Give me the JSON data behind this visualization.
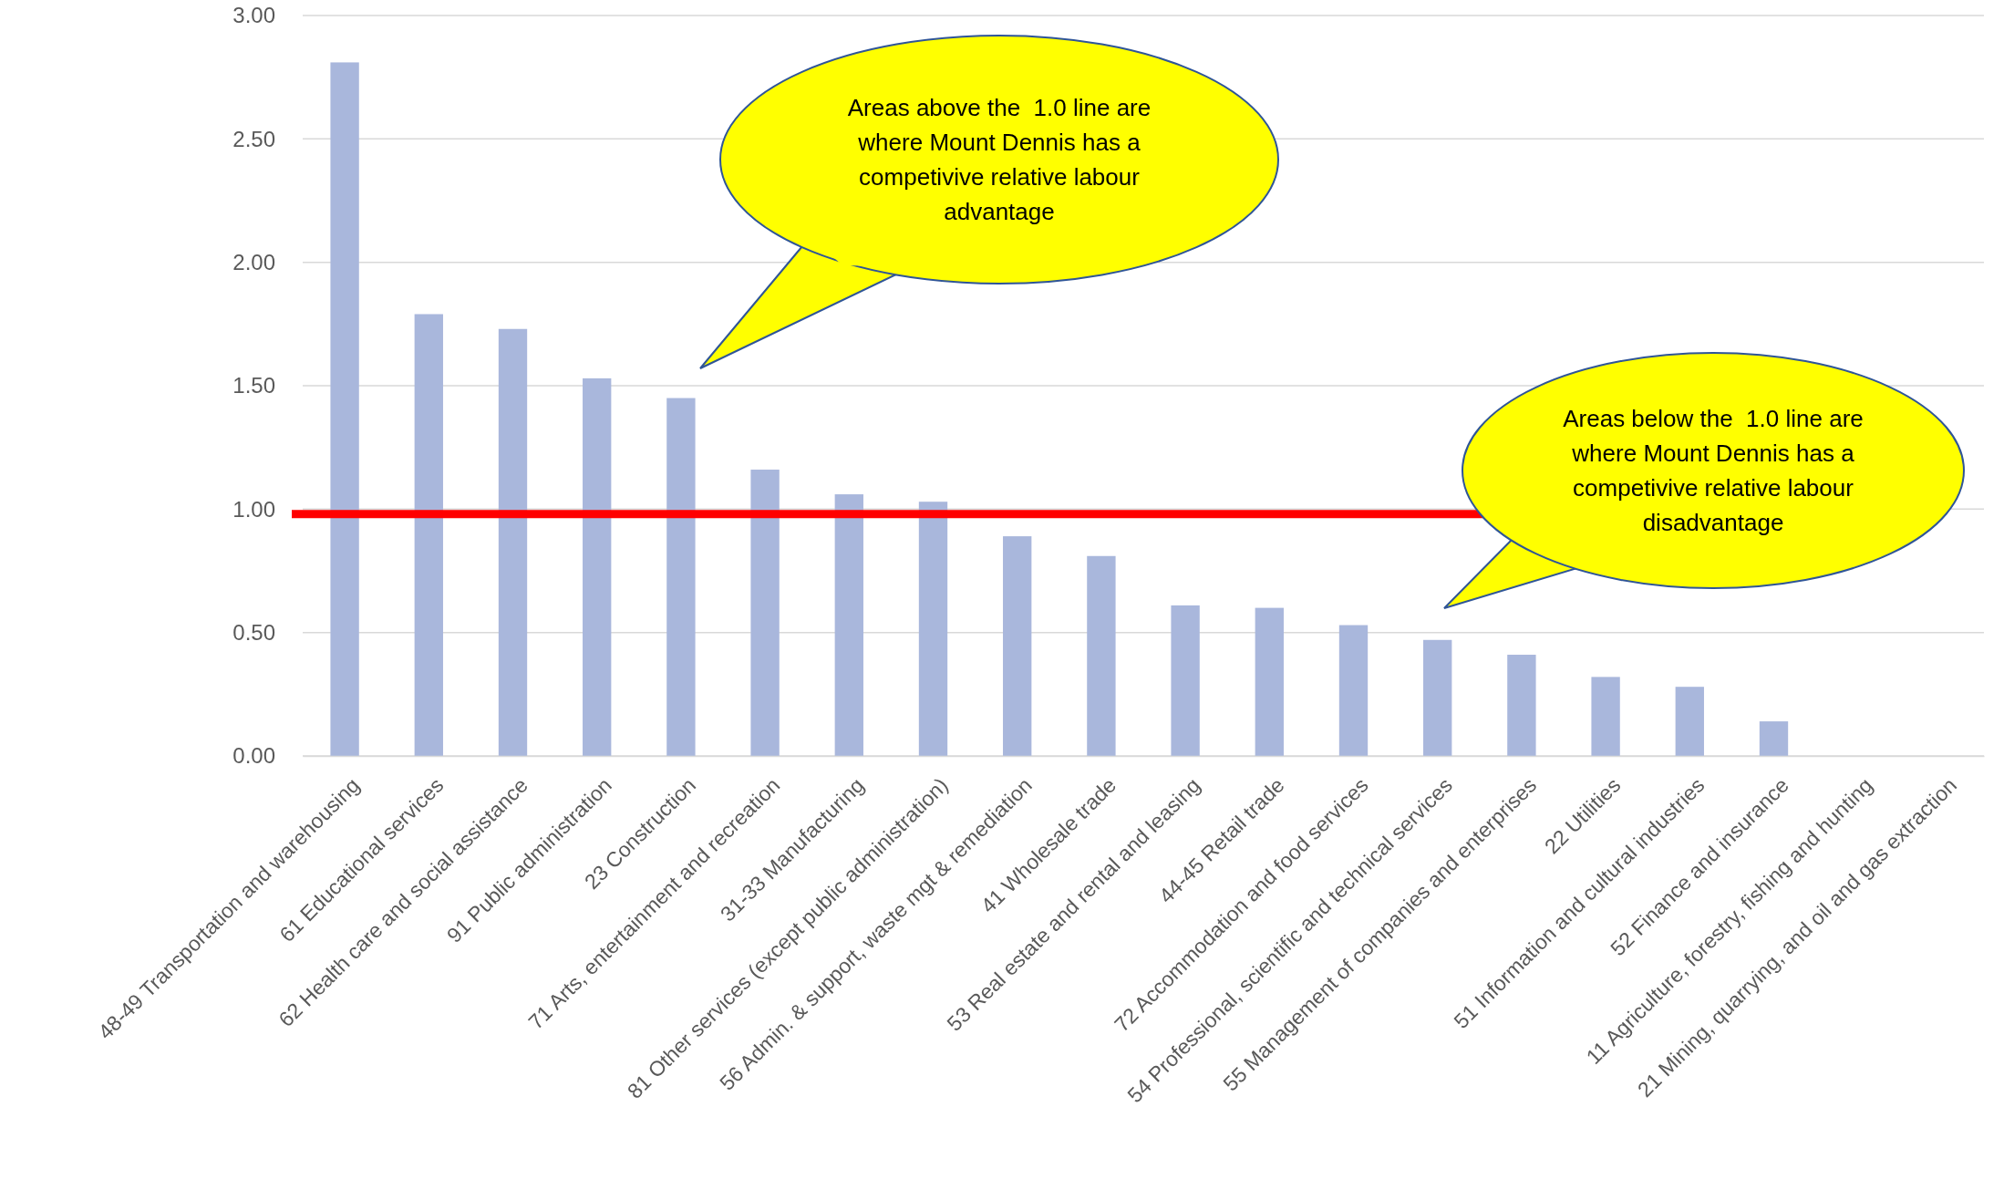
{
  "chart_data": {
    "type": "bar",
    "categories": [
      "48-49 Transportation and warehousing",
      "61 Educational services",
      "62 Health care and social assistance",
      "91 Public administration",
      "23 Construction",
      "71 Arts, entertainment and recreation",
      "31-33 Manufacturing",
      "81 Other services (except public administration)",
      "56 Admin. & support, waste mgt & remediation",
      "41 Wholesale trade",
      "53 Real estate and rental and leasing",
      "44-45 Retail trade",
      "72 Accommodation and food services",
      "54 Professional, scientific and technical services",
      "55 Management of companies and enterprises",
      "22 Utilities",
      "51 Information and cultural industries",
      "52 Finance and insurance",
      "11 Agriculture, forestry, fishing and hunting",
      "21 Mining, quarrying, and oil and gas extraction"
    ],
    "values": [
      2.81,
      1.79,
      1.73,
      1.53,
      1.45,
      1.16,
      1.06,
      1.03,
      0.89,
      0.81,
      0.61,
      0.6,
      0.53,
      0.47,
      0.41,
      0.32,
      0.28,
      0.14,
      0,
      0
    ],
    "color": "#a9b7dc",
    "ylim": [
      0,
      3
    ],
    "yticks": [
      {
        "value": 0,
        "label": "0.00"
      },
      {
        "value": 0.5,
        "label": "0.50"
      },
      {
        "value": 1,
        "label": "1.00"
      },
      {
        "value": 1.5,
        "label": "1.50"
      },
      {
        "value": 2,
        "label": "2.00"
      },
      {
        "value": 2.5,
        "label": "2.50"
      },
      {
        "value": 3,
        "label": "3.00"
      }
    ],
    "grid": "y",
    "ref_lines": [
      {
        "axis": "y",
        "value": 0.98,
        "color": "#ff0000"
      }
    ],
    "annotations": [
      "Areas above the  1.0 line are where Mount Dennis has a competivive relative labour advantage",
      "Areas below the  1.0 line are where Mount Dennis has a competivive relative labour disadvantage"
    ]
  }
}
